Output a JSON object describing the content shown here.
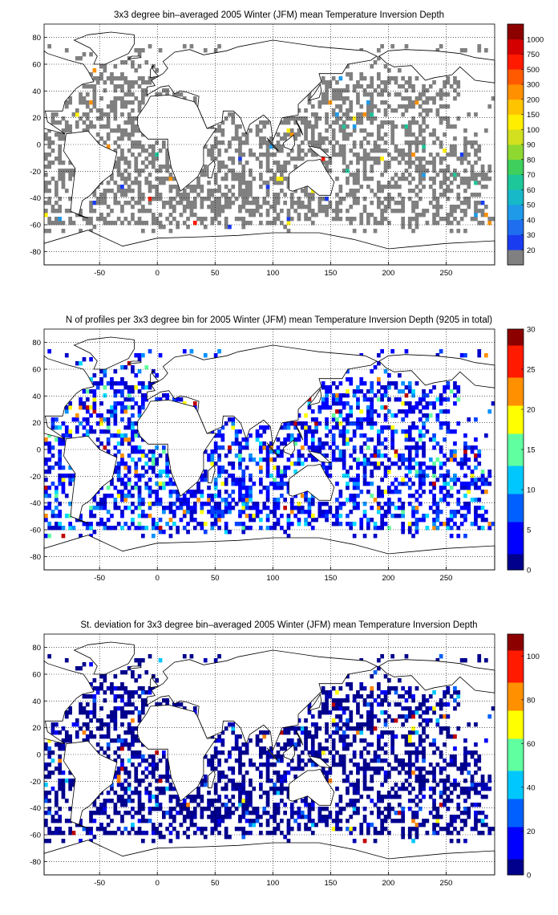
{
  "panels": [
    {
      "title": "3x3 degree bin–averaged 2005 Winter (JFM) mean Temperature Inversion Depth",
      "x_ticks": [
        -50,
        0,
        50,
        100,
        150,
        200,
        250
      ],
      "y_ticks": [
        80,
        60,
        40,
        20,
        0,
        -20,
        -40,
        -60,
        -80
      ],
      "colorbar": {
        "type": "categorical",
        "labels": [
          "20",
          "30",
          "40",
          "50",
          "60",
          "70",
          "80",
          "90",
          "100",
          "150",
          "200",
          "300",
          "500",
          "750",
          "1000"
        ],
        "colors": [
          "#808080",
          "#1a3cf0",
          "#1f6ef0",
          "#1f9ae8",
          "#17b8c8",
          "#1ec79a",
          "#3ecf5c",
          "#8ed830",
          "#d2e020",
          "#ffee00",
          "#ffc400",
          "#ff9000",
          "#ff5a00",
          "#ff1a00",
          "#d40000",
          "#8c0000"
        ]
      },
      "palette": [
        "#808080",
        "#808080",
        "#808080",
        "#808080",
        "#808080",
        "#1a3cf0",
        "#1f9ae8",
        "#1ec79a",
        "#ffee00",
        "#ff9000",
        "#ff1a00"
      ],
      "palette_weights": [
        60,
        60,
        60,
        60,
        60,
        3,
        2,
        2,
        2,
        2,
        1
      ]
    },
    {
      "title": "N of profiles per 3x3 degree bin for 2005 Winter (JFM) mean Temperature Inversion Depth  (9205 in total)",
      "x_ticks": [
        -50,
        0,
        50,
        100,
        150,
        200,
        250
      ],
      "y_ticks": [
        80,
        60,
        40,
        20,
        0,
        -20,
        -40,
        -60,
        -80
      ],
      "colorbar": {
        "type": "continuous",
        "ticks": [
          0,
          5,
          10,
          15,
          20,
          25,
          30
        ],
        "range": [
          0,
          30
        ]
      },
      "palette": [
        "#0000c8",
        "#0000ff",
        "#0040ff",
        "#0090ff",
        "#00d8ff",
        "#60ffa0",
        "#ffff00",
        "#ff9000",
        "#c00000"
      ],
      "palette_weights": [
        30,
        30,
        12,
        8,
        5,
        3,
        2,
        2,
        1
      ]
    },
    {
      "title": "St. deviation for 3x3 degree bin–averaged 2005 Winter (JFM) mean Temperature Inversion Depth",
      "x_ticks": [
        -50,
        0,
        50,
        100,
        150,
        200,
        250
      ],
      "y_ticks": [
        80,
        60,
        40,
        20,
        0,
        -20,
        -40,
        -60,
        -80
      ],
      "colorbar": {
        "type": "continuous",
        "ticks": [
          0,
          20,
          40,
          60,
          80,
          100
        ],
        "range": [
          0,
          110
        ]
      },
      "palette": [
        "#00008c",
        "#00008c",
        "#0000b4",
        "#0000ff",
        "#0060ff",
        "#00c8ff",
        "#ffff00",
        "#ff8000",
        "#c00000"
      ],
      "palette_weights": [
        60,
        30,
        20,
        6,
        3,
        2,
        1,
        1,
        1
      ]
    }
  ]
}
